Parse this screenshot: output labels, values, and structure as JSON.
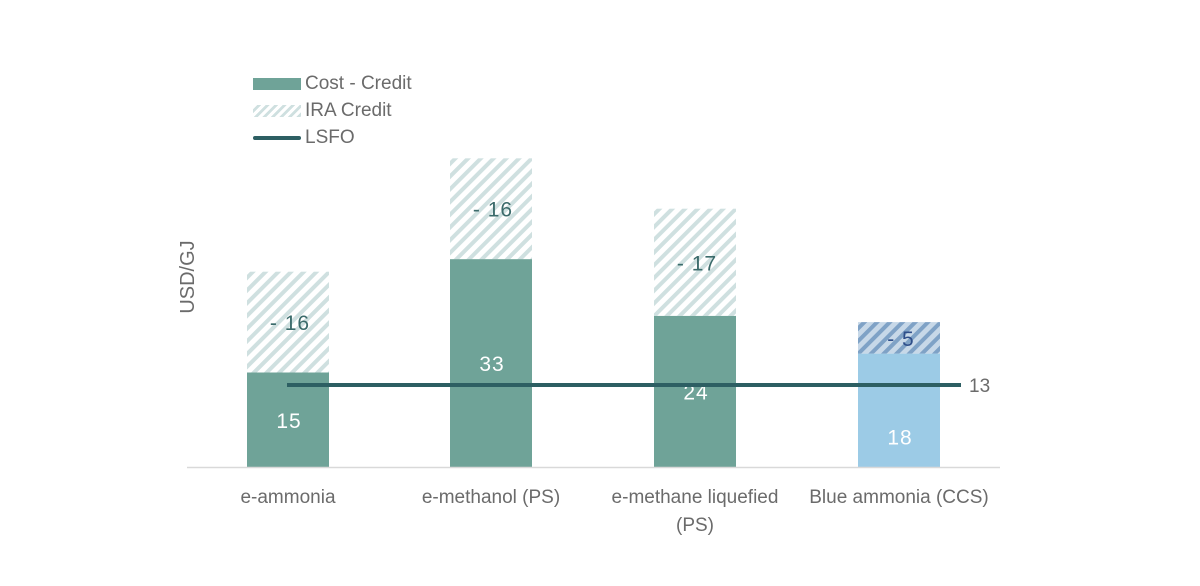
{
  "chart_data": {
    "type": "bar",
    "stacked": true,
    "ylabel": "USD/GJ",
    "ylim": [
      0,
      50
    ],
    "categories": [
      "e-ammonia",
      "e-methanol (PS)",
      "e-methane liquefied (PS)",
      "Blue ammonia (CCS)"
    ],
    "series": [
      {
        "name": "Cost - Credit",
        "values": [
          15,
          33,
          24,
          18
        ],
        "colors": [
          "#6fa398",
          "#6fa398",
          "#6fa398",
          "#9ccbe6"
        ]
      },
      {
        "name": "IRA Credit",
        "values": [
          16,
          16,
          17,
          5
        ],
        "labels": [
          "- 16",
          "- 16",
          "- 17",
          "- 5"
        ],
        "colors": [
          "#cfe0e0",
          "#cfe0e0",
          "#cfe0e0",
          "#8fb0d0"
        ]
      }
    ],
    "reference_line": {
      "name": "LSFO",
      "value": 13,
      "label": "13",
      "color": "#2d5f63"
    },
    "legend_position": "top-left",
    "grid": false
  }
}
